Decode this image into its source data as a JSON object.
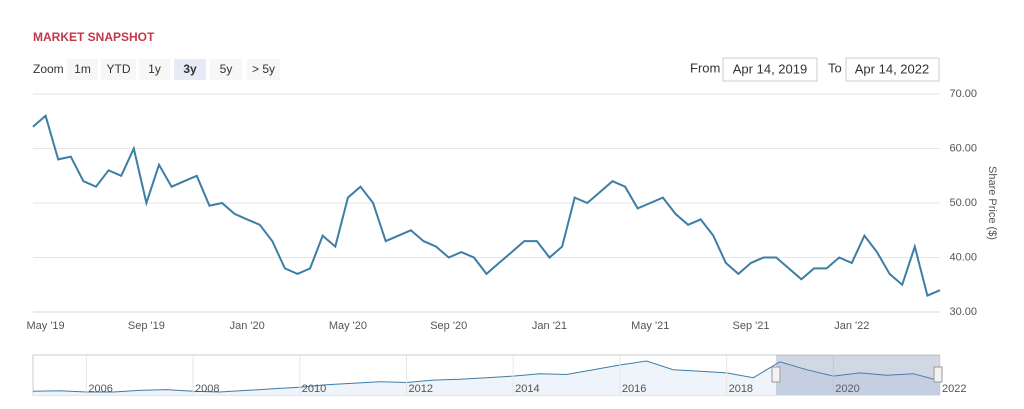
{
  "header": {
    "title": "MARKET SNAPSHOT"
  },
  "controls": {
    "zoom_label": "Zoom",
    "buttons": [
      "1m",
      "YTD",
      "1y",
      "3y",
      "5y",
      "> 5y"
    ],
    "selected": "3y",
    "from_label": "From",
    "from": "Apr 14, 2019",
    "to_label": "To",
    "to": "Apr 14, 2022"
  },
  "chart_data": {
    "type": "line",
    "y_label": "Share Price ($)",
    "categories": [
      null,
      "May '19",
      null,
      null,
      null,
      null,
      null,
      null,
      null,
      "Sep '19",
      null,
      null,
      null,
      null,
      null,
      null,
      null,
      "Jan '20",
      null,
      null,
      null,
      null,
      null,
      null,
      null,
      "May '20",
      null,
      null,
      null,
      null,
      null,
      null,
      null,
      "Sep '20",
      null,
      null,
      null,
      null,
      null,
      null,
      null,
      "Jan '21",
      null,
      null,
      null,
      null,
      null,
      null,
      null,
      "May '21",
      null,
      null,
      null,
      null,
      null,
      null,
      null,
      "Sep '21",
      null,
      null,
      null,
      null,
      null,
      null,
      null,
      "Jan '22",
      null,
      null,
      null,
      null,
      null,
      null,
      null
    ],
    "series": [
      {
        "name": "Share Price",
        "color": "#3d7ea6",
        "values": [
          64,
          66,
          58,
          58.5,
          54,
          53,
          56,
          55,
          60,
          50,
          57,
          53,
          54,
          55,
          49.5,
          50,
          48,
          47,
          46,
          43,
          38,
          37,
          38,
          44,
          42,
          51,
          53,
          50,
          43,
          44,
          45,
          43,
          42,
          40,
          41,
          40,
          37,
          39,
          41,
          43,
          43,
          40,
          42,
          51,
          50,
          52,
          54,
          53,
          49,
          50,
          51,
          48,
          46,
          47,
          44,
          39,
          37,
          39,
          40,
          40,
          38,
          36,
          38,
          38,
          40,
          39,
          44,
          41,
          37,
          35,
          42,
          33,
          34
        ]
      }
    ],
    "ylim": [
      30,
      70
    ],
    "yticks": [
      {
        "value": 30,
        "label": "30.00"
      },
      {
        "value": 40,
        "label": "40.00"
      },
      {
        "value": 50,
        "label": "50.00"
      },
      {
        "value": 60,
        "label": "60.00"
      },
      {
        "value": 70,
        "label": "70.00"
      }
    ],
    "grid": true
  },
  "navigator": {
    "color": "#3d7ea6",
    "categories": [
      null,
      null,
      "2006",
      null,
      null,
      null,
      "2008",
      null,
      null,
      null,
      "2010",
      null,
      null,
      null,
      "2012",
      null,
      null,
      null,
      "2014",
      null,
      null,
      null,
      "2016",
      null,
      null,
      null,
      "2018",
      null,
      null,
      null,
      "2020",
      null,
      null,
      null,
      "2022"
    ],
    "values": [
      25,
      25.5,
      24,
      24,
      26,
      27,
      25,
      24,
      26,
      28,
      30,
      33,
      35,
      37,
      36,
      39,
      40,
      42,
      44,
      47,
      46,
      52,
      58,
      63,
      52,
      50,
      48,
      42,
      62,
      52,
      44,
      48,
      45,
      47,
      38
    ]
  }
}
